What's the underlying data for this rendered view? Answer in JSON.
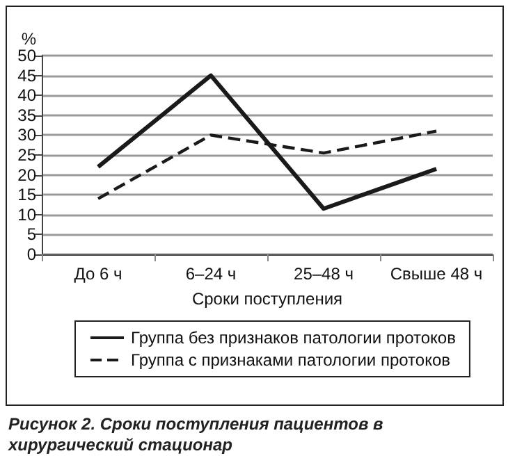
{
  "chart_data": {
    "type": "line",
    "xlabel": "Сроки поступления",
    "ylabel": "%",
    "categories": [
      "До 6 ч",
      "6–24 ч",
      "25–48 ч",
      "Свыше 48 ч"
    ],
    "series": [
      {
        "name": "Группа без признаков патологии протоков",
        "color": "#1a1a1a",
        "values": [
          22,
          45,
          11.5,
          21.5
        ],
        "line_style": "solid"
      },
      {
        "name": "Группа с признаками патологии протоков",
        "color": "#1a1a1a",
        "values": [
          14,
          30,
          25.5,
          31
        ],
        "line_style": "dashed"
      }
    ],
    "ylim": [
      0,
      50
    ],
    "yticks": [
      0,
      5,
      10,
      15,
      20,
      25,
      30,
      35,
      40,
      45,
      50
    ],
    "grid": "y",
    "legend": "bottom",
    "marker": "none",
    "annotations": [
      "Рисунок 2. Сроки поступления пациентов в хирургический стационар"
    ]
  }
}
